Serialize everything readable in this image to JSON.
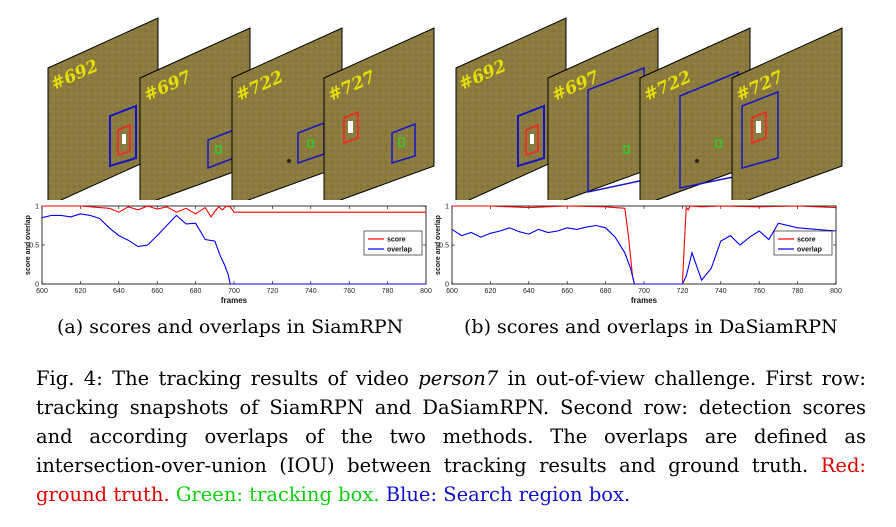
{
  "panels": [
    {
      "id": "a",
      "frames": [
        "#692",
        "#697",
        "#722",
        "#727"
      ],
      "subcaption": "(a) scores and overlaps in SiamRPN"
    },
    {
      "id": "b",
      "frames": [
        "#692",
        "#697",
        "#722",
        "#727"
      ],
      "subcaption": "(b) scores and overlaps in DaSiamRPN"
    }
  ],
  "chart_data": [
    {
      "type": "line",
      "title": "",
      "xlabel": "frames",
      "ylabel": "score and overlap",
      "xlim": [
        600,
        800
      ],
      "ylim": [
        0,
        1
      ],
      "xticks": [
        "600",
        "620",
        "640",
        "660",
        "680",
        "700",
        "720",
        "740",
        "760",
        "780",
        "800"
      ],
      "yticks": [
        "0",
        "0.5",
        "1"
      ],
      "legend": "middle-right",
      "series": [
        {
          "name": "score",
          "color": "#ff0000",
          "x": [
            600,
            610,
            620,
            630,
            635,
            640,
            645,
            650,
            655,
            660,
            665,
            670,
            675,
            680,
            685,
            688,
            690,
            692,
            694,
            696,
            698,
            700,
            710,
            720,
            740,
            760,
            780,
            800
          ],
          "values": [
            1,
            1,
            1,
            0.98,
            0.97,
            0.92,
            0.99,
            0.95,
            1,
            0.96,
            0.99,
            0.92,
            0.97,
            0.9,
            0.98,
            0.86,
            0.93,
            0.99,
            0.95,
            1,
            0.99,
            0.92,
            0.92,
            0.92,
            0.92,
            0.92,
            0.92,
            0.92
          ]
        },
        {
          "name": "overlap",
          "color": "#0000ff",
          "x": [
            600,
            605,
            610,
            615,
            620,
            625,
            630,
            635,
            640,
            645,
            650,
            655,
            660,
            665,
            670,
            675,
            680,
            685,
            690,
            693,
            695,
            697,
            698,
            700,
            720,
            740,
            760,
            780,
            800
          ],
          "values": [
            0.85,
            0.88,
            0.88,
            0.86,
            0.9,
            0.88,
            0.84,
            0.72,
            0.62,
            0.56,
            0.48,
            0.5,
            0.62,
            0.75,
            0.88,
            0.77,
            0.78,
            0.57,
            0.55,
            0.35,
            0.25,
            0.12,
            0.0,
            0.0,
            0.0,
            0.0,
            0.0,
            0.0,
            0.0
          ]
        }
      ]
    },
    {
      "type": "line",
      "title": "",
      "xlabel": "frames",
      "ylabel": "score and overlap",
      "xlim": [
        600,
        800
      ],
      "ylim": [
        0,
        1
      ],
      "xticks": [
        "600",
        "620",
        "640",
        "660",
        "680",
        "700",
        "720",
        "740",
        "760",
        "780",
        "800"
      ],
      "yticks": [
        "0",
        "0.5",
        "1"
      ],
      "legend": "middle-right",
      "series": [
        {
          "name": "score",
          "color": "#ff0000",
          "x": [
            600,
            620,
            640,
            660,
            680,
            690,
            692,
            694,
            695,
            696,
            720,
            721,
            722,
            723,
            724,
            730,
            740,
            760,
            780,
            800
          ],
          "values": [
            1,
            1,
            0.98,
            1,
            0.99,
            0.97,
            0.6,
            0.1,
            0.0,
            0.0,
            0.0,
            0.5,
            0.98,
            0.95,
            1,
            0.99,
            1,
            0.99,
            1,
            0.98
          ]
        },
        {
          "name": "overlap",
          "color": "#0000ff",
          "x": [
            600,
            605,
            610,
            615,
            620,
            625,
            630,
            635,
            640,
            645,
            650,
            655,
            660,
            665,
            670,
            675,
            680,
            685,
            690,
            693,
            695,
            700,
            705,
            710,
            715,
            720,
            722,
            725,
            730,
            735,
            740,
            745,
            750,
            755,
            760,
            765,
            770,
            780,
            790,
            800
          ],
          "values": [
            0.7,
            0.62,
            0.66,
            0.6,
            0.65,
            0.68,
            0.72,
            0.67,
            0.64,
            0.7,
            0.66,
            0.68,
            0.72,
            0.7,
            0.73,
            0.75,
            0.72,
            0.6,
            0.4,
            0.2,
            0.0,
            0.0,
            0.0,
            0.0,
            0.0,
            0.0,
            0.1,
            0.4,
            0.05,
            0.2,
            0.55,
            0.62,
            0.5,
            0.6,
            0.68,
            0.57,
            0.78,
            0.72,
            0.7,
            0.68
          ]
        }
      ]
    }
  ],
  "caption": {
    "prefix": "Fig. 4: The tracking results of video ",
    "video_name": "person7",
    "main": " in out-of-view challenge. First row: tracking snapshots of SiamRPN and DaSiamRPN. Second row: detection scores and according overlaps of the two methods. The overlaps are defined as intersection-over-union (IOU) between tracking results and ground truth. ",
    "red": "Red: ground truth.",
    "green": " Green: tracking box.",
    "blue": " Blue: Search region box."
  },
  "colors": {
    "field": "#8a7a3e",
    "ground_truth": "#ff2020",
    "tracking": "#20e020",
    "search": "#1515c8"
  }
}
